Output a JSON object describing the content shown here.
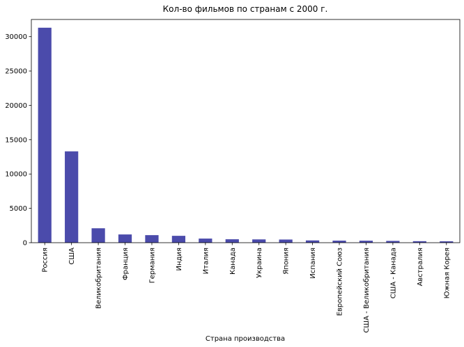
{
  "chart_data": {
    "type": "bar",
    "title": "Кол-во фильмов по странам с 2000 г.",
    "xlabel": "Страна производства",
    "ylabel": "",
    "categories": [
      "Россия",
      "США",
      "Великобритания",
      "Франция",
      "Германия",
      "Индия",
      "Италия",
      "Канада",
      "Украина",
      "Япония",
      "Испания",
      "Европейский Союз",
      "США - Великобритания",
      "США - Канада",
      "Австралия",
      "Южная Корея"
    ],
    "values": [
      31300,
      13300,
      2100,
      1200,
      1100,
      1000,
      600,
      500,
      480,
      460,
      330,
      300,
      290,
      260,
      220,
      200
    ],
    "ylim": [
      0,
      32500
    ],
    "yticks": [
      0,
      5000,
      10000,
      15000,
      20000,
      25000,
      30000
    ],
    "bar_color": "#4b4bab",
    "grid": false,
    "legend": "none"
  }
}
